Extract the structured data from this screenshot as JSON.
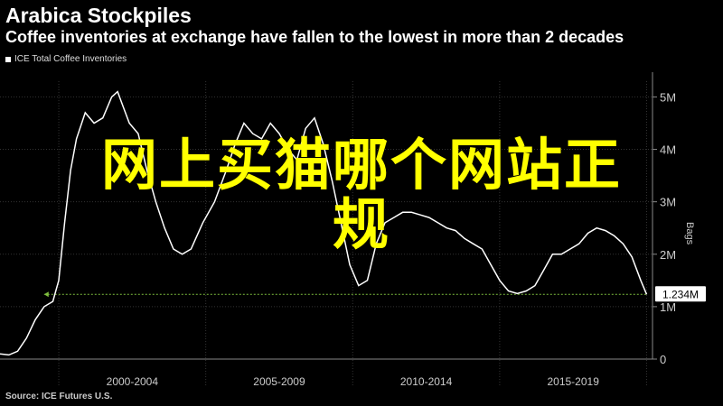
{
  "header": {
    "title": "Arabica Stockpiles",
    "subtitle": "Coffee inventories at exchange have fallen to the lowest in more than 2 decades"
  },
  "footer": {
    "source": "Source: ICE Futures U.S."
  },
  "overlay": {
    "watermark_line1": "网上买猫哪个网站正",
    "watermark_line2": "规"
  },
  "colors": {
    "background": "#000000",
    "line": "#ffffff",
    "reference": "#7fbf3f",
    "watermark": "#ffff00"
  },
  "chart_data": {
    "type": "line",
    "title": "Arabica Stockpiles",
    "subtitle": "Coffee inventories at exchange have fallen to the lowest in more than 2 decades",
    "unit_label": "Bags",
    "legend": [
      "ICE Total Coffee Inventories"
    ],
    "legend_position": "top-left",
    "grid": true,
    "y_axis": {
      "side": "right",
      "ticks": [
        0,
        1,
        2,
        3,
        4,
        5
      ],
      "tick_labels": [
        "0",
        "1M",
        "2M",
        "3M",
        "4M",
        "5M"
      ],
      "ylim": [
        0,
        5.3
      ]
    },
    "x_axis": {
      "categories": [
        "2000-2004",
        "2005-2009",
        "2010-2014",
        "2015-2019"
      ],
      "xlim": [
        1998,
        2020.2
      ]
    },
    "last_value_label": "1.234M",
    "reference_value": 1.234,
    "series": [
      {
        "name": "ICE Total Coffee Inventories",
        "x": [
          1998.0,
          1998.3,
          1998.6,
          1998.9,
          1999.2,
          1999.5,
          1999.8,
          2000.0,
          2000.2,
          2000.4,
          2000.6,
          2000.9,
          2001.2,
          2001.5,
          2001.8,
          2002.0,
          2002.2,
          2002.4,
          2002.7,
          2003.0,
          2003.3,
          2003.6,
          2003.9,
          2004.2,
          2004.5,
          2004.9,
          2005.3,
          2005.7,
          2006.0,
          2006.3,
          2006.6,
          2006.9,
          2007.2,
          2007.5,
          2007.8,
          2008.1,
          2008.4,
          2008.7,
          2009.0,
          2009.3,
          2009.6,
          2009.9,
          2010.2,
          2010.5,
          2010.8,
          2011.1,
          2011.4,
          2011.7,
          2012.0,
          2012.3,
          2012.6,
          2012.9,
          2013.2,
          2013.5,
          2013.8,
          2014.1,
          2014.4,
          2014.7,
          2015.0,
          2015.3,
          2015.6,
          2015.9,
          2016.2,
          2016.5,
          2016.8,
          2017.1,
          2017.4,
          2017.7,
          2018.0,
          2018.3,
          2018.6,
          2018.9,
          2019.2,
          2019.5,
          2019.8,
          2020.0
        ],
        "values": [
          0.1,
          0.08,
          0.15,
          0.4,
          0.75,
          1.0,
          1.1,
          1.5,
          2.6,
          3.6,
          4.2,
          4.7,
          4.5,
          4.6,
          5.0,
          5.1,
          4.8,
          4.5,
          4.3,
          3.6,
          3.0,
          2.5,
          2.1,
          2.0,
          2.1,
          2.6,
          3.0,
          3.6,
          4.1,
          4.5,
          4.3,
          4.2,
          4.5,
          4.3,
          4.0,
          3.8,
          4.4,
          4.6,
          4.1,
          3.4,
          2.6,
          1.8,
          1.4,
          1.5,
          2.2,
          2.6,
          2.7,
          2.8,
          2.8,
          2.75,
          2.7,
          2.6,
          2.5,
          2.45,
          2.3,
          2.2,
          2.1,
          1.8,
          1.5,
          1.3,
          1.25,
          1.3,
          1.4,
          1.7,
          2.0,
          2.0,
          2.1,
          2.2,
          2.4,
          2.5,
          2.45,
          2.35,
          2.2,
          1.95,
          1.5,
          1.234
        ]
      }
    ]
  }
}
